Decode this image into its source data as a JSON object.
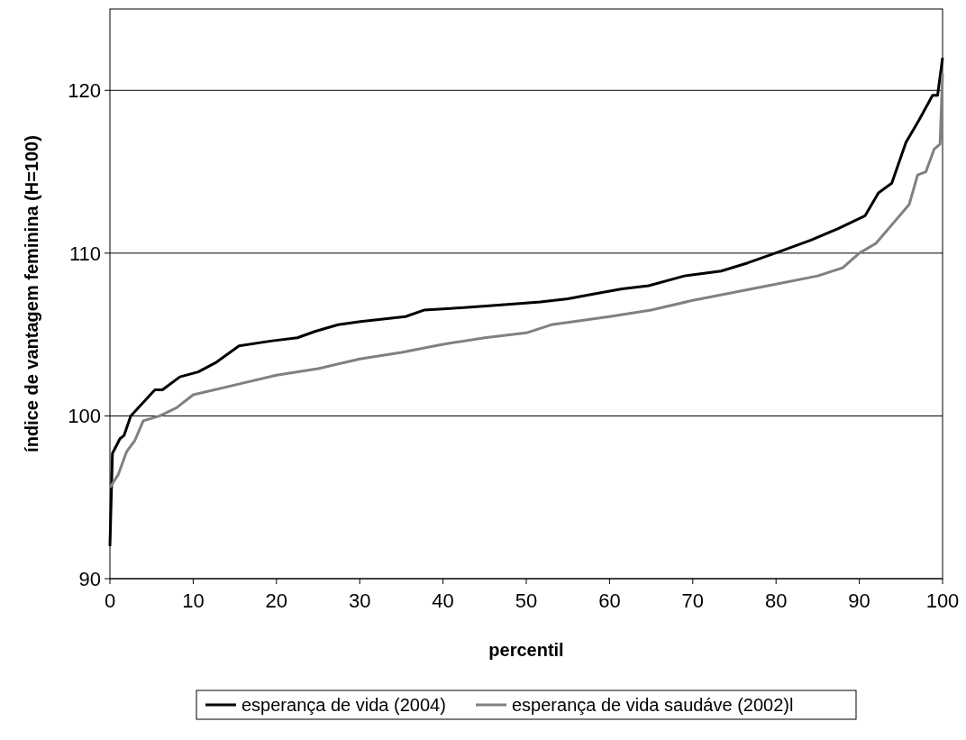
{
  "chart_data": {
    "type": "line",
    "xlabel": "percentil",
    "ylabel": "índice de vantagem feminina (H=100)",
    "xlim": [
      0,
      100
    ],
    "xticks": [
      0,
      10,
      20,
      30,
      40,
      50,
      60,
      70,
      80,
      90,
      100
    ],
    "ylim": [
      90,
      125
    ],
    "yticks": [
      90,
      100,
      110,
      120
    ],
    "grid": "y",
    "legend": "bottom",
    "marker": "none",
    "line_style": "solid",
    "series": [
      {
        "name": "esperança de vida (2004)",
        "color": "#000000",
        "x": [
          0,
          0.3,
          1.2,
          1.7,
          2.5,
          5.4,
          6.3,
          8.4,
          10.6,
          12.8,
          15.5,
          19.3,
          22.5,
          24.7,
          27.4,
          30.1,
          35.5,
          37.7,
          40.9,
          46.3,
          51.7,
          55,
          58.2,
          61.5,
          64.7,
          69,
          73.4,
          76.6,
          79.9,
          84.2,
          87.4,
          90.7,
          92.3,
          93.9,
          95.6,
          97.2,
          98.8,
          99.4,
          100
        ],
        "values": [
          92,
          97.7,
          98.6,
          98.8,
          100,
          101.6,
          101.6,
          102.4,
          102.7,
          103.3,
          104.3,
          104.6,
          104.8,
          105.2,
          105.6,
          105.8,
          106.1,
          106.5,
          106.6,
          106.8,
          107,
          107.2,
          107.5,
          107.8,
          108,
          108.6,
          108.9,
          109.4,
          110,
          110.8,
          111.5,
          112.3,
          113.7,
          114.3,
          116.8,
          118.2,
          119.7,
          119.7,
          122
        ]
      },
      {
        "name": "esperança de vida saudáve (2002)l",
        "color": "#808080",
        "x": [
          0,
          1,
          2,
          3,
          4,
          6,
          8,
          10,
          15,
          20,
          25,
          30,
          35,
          40,
          45,
          50,
          53,
          60,
          65,
          70,
          75,
          80,
          85,
          88,
          90,
          92,
          94,
          96,
          97,
          98,
          99,
          99.7,
          100
        ],
        "values": [
          95.6,
          96.4,
          97.8,
          98.5,
          99.7,
          100,
          100.5,
          101.3,
          101.9,
          102.5,
          102.9,
          103.5,
          103.9,
          104.4,
          104.8,
          105.1,
          105.6,
          106.1,
          106.5,
          107.1,
          107.6,
          108.1,
          108.6,
          109.1,
          110,
          110.6,
          111.8,
          113,
          114.8,
          115,
          116.4,
          116.7,
          121
        ]
      }
    ]
  }
}
